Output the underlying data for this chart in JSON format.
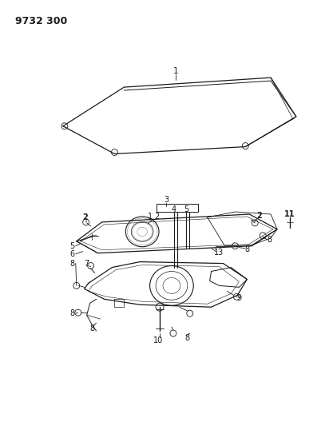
{
  "background_color": "#ffffff",
  "page_number": "9732 300",
  "line_color": "#1a1a1a",
  "text_color": "#1a1a1a",
  "fig_w": 4.12,
  "fig_h": 5.33,
  "dpi": 100
}
